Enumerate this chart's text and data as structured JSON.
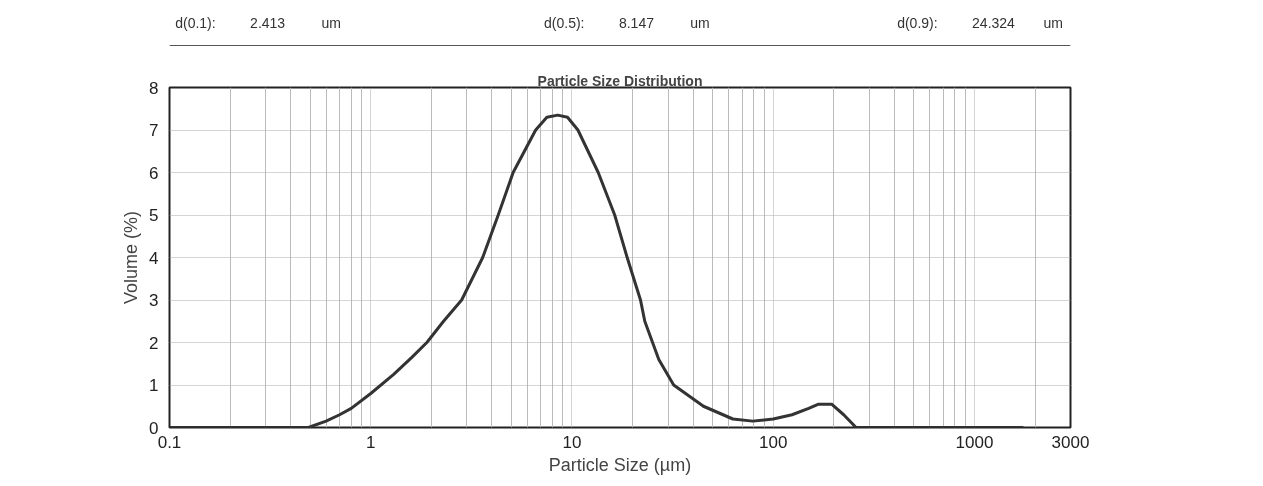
{
  "chart_data": {
    "type": "line",
    "title": "Particle Size Distribution",
    "xlabel": "Particle Size (µm)",
    "ylabel": "Volume (%)",
    "annotations": [
      "d(0.1):",
      "2.413",
      "um",
      "d(0.5):",
      "8.147",
      "um",
      "d(0.9):",
      "24.324",
      "um"
    ],
    "log": "x",
    "grid": true,
    "marker": "none",
    "line_style": "solid",
    "xlim": [
      0.1,
      3000
    ],
    "xticks": [
      0.1,
      1,
      10,
      100,
      1000,
      3000
    ],
    "ylim": [
      0,
      8
    ],
    "yticks": [
      0,
      1,
      2,
      3,
      4,
      5,
      6,
      7,
      8
    ],
    "series": [
      {
        "color": "#333333",
        "x": [
          0.1,
          0.3,
          0.49,
          0.6,
          0.7,
          0.8,
          1,
          1.3,
          1.6,
          1.9,
          2.3,
          2.83,
          3.6,
          4.3,
          5.1,
          6.6,
          7.5,
          8.5,
          9.5,
          10.7,
          13.5,
          16.3,
          18.8,
          21.9,
          23,
          27,
          32,
          45,
          63,
          79,
          100,
          124,
          150,
          168,
          195,
          224,
          258,
          500,
          1000,
          1750
        ],
        "values": [
          0,
          0,
          0,
          0.15,
          0.3,
          0.45,
          0.8,
          1.25,
          1.65,
          2,
          2.5,
          3,
          4,
          5,
          6,
          7,
          7.3,
          7.35,
          7.3,
          7,
          6,
          5,
          4,
          3,
          2.5,
          1.6,
          1,
          0.5,
          0.2,
          0.15,
          0.2,
          0.3,
          0.45,
          0.55,
          0.55,
          0.3,
          0,
          0,
          0,
          0
        ]
      }
    ]
  }
}
